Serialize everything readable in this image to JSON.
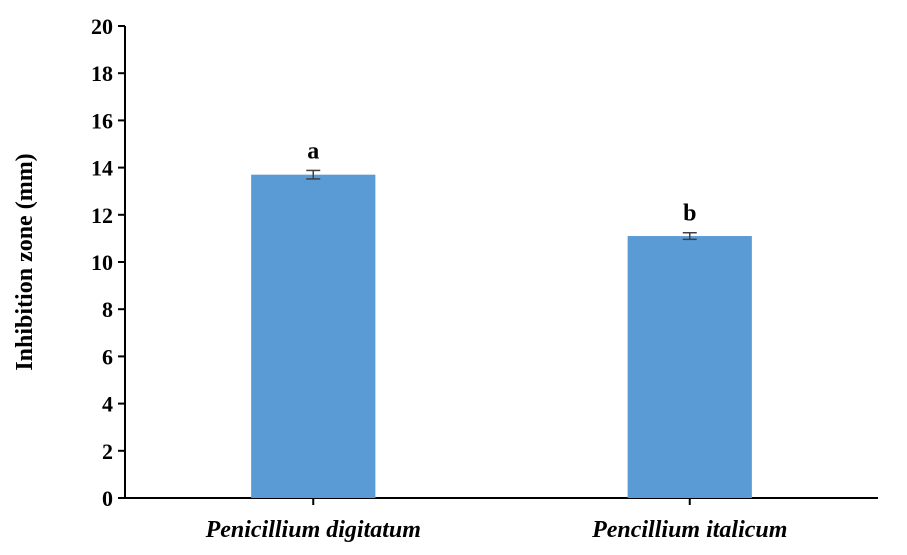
{
  "chart_data": {
    "type": "bar",
    "title": "",
    "xlabel": "",
    "ylabel": "Inhibition zone (mm)",
    "ylim": [
      0,
      20
    ],
    "yticks": [
      0,
      2,
      4,
      6,
      8,
      10,
      12,
      14,
      16,
      18,
      20
    ],
    "categories": [
      "Penicillium digitatum",
      "Pencillium italicum"
    ],
    "values": [
      13.7,
      11.1
    ],
    "error": [
      0.18,
      0.14
    ],
    "significance_labels": [
      "a",
      "b"
    ],
    "grid": false,
    "legend": "none",
    "colors": {
      "bar": "#5B9BD5",
      "axis": "#000000",
      "error_bar": "#3f3f3f"
    }
  }
}
